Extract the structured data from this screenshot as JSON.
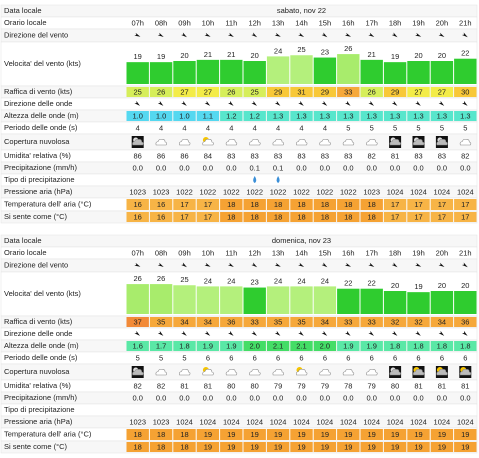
{
  "days": [
    {
      "rows": [
        {
          "label": "Data locale",
          "value": "sabato, nov 22"
        },
        {
          "label": "Orario locale",
          "values": [
            "07h",
            "08h",
            "09h",
            "10h",
            "11h",
            "12h",
            "13h",
            "14h",
            "15h",
            "16h",
            "17h",
            "18h",
            "19h",
            "20h",
            "21h"
          ]
        },
        {
          "label": "Direzione del vento"
        },
        {
          "label": "Velocita' del vento (kts)",
          "values": [
            19,
            19,
            20,
            21,
            21,
            20,
            24,
            25,
            23,
            26,
            21,
            19,
            20,
            20,
            22
          ]
        },
        {
          "label": "Raffica di vento (kts)",
          "values": [
            "25",
            "26",
            "27",
            "27",
            "26",
            "25",
            "29",
            "31",
            "29",
            "33",
            "26",
            "29",
            "27",
            "27",
            "30"
          ]
        },
        {
          "label": "Direzione delle onde"
        },
        {
          "label": "Altezza delle onde (m)",
          "values": [
            "1.0",
            "1.0",
            "1.0",
            "1.1",
            "1.2",
            "1.2",
            "1.3",
            "1.3",
            "1.3",
            "1.3",
            "1.3",
            "1.3",
            "1.3",
            "1.3",
            "1.3"
          ]
        },
        {
          "label": "Periodo delle onde (s)",
          "values": [
            "4",
            "4",
            "4",
            "4",
            "4",
            "4",
            "4",
            "4",
            "4",
            "5",
            "5",
            "5",
            "5",
            "5",
            "5"
          ]
        },
        {
          "label": "Copertura nuvolosa"
        },
        {
          "label": "Umidita' relativa (%)",
          "values": [
            "86",
            "86",
            "86",
            "84",
            "83",
            "83",
            "83",
            "83",
            "83",
            "83",
            "82",
            "81",
            "83",
            "83",
            "82"
          ]
        },
        {
          "label": "Precipitazione (mm/h)",
          "values": [
            "0.0",
            "0.0",
            "0.0",
            "0.0",
            "0.0",
            "0.1",
            "0.1",
            "0.0",
            "0.0",
            "0.0",
            "0.0",
            "0.0",
            "0.0",
            "0.0",
            "0.0"
          ]
        },
        {
          "label": "Tipo di precipitazione"
        },
        {
          "label": "Pressione aria (hPa)",
          "values": [
            "1023",
            "1023",
            "1022",
            "1022",
            "1022",
            "1022",
            "1022",
            "1022",
            "1022",
            "1022",
            "1023",
            "1024",
            "1024",
            "1024",
            "1024"
          ]
        },
        {
          "label": "Temperatura dell' aria (°C)",
          "values": [
            "16",
            "16",
            "17",
            "17",
            "18",
            "18",
            "18",
            "18",
            "18",
            "18",
            "18",
            "17",
            "17",
            "17",
            "17"
          ]
        },
        {
          "label": "Si sente come (°C)",
          "values": [
            "16",
            "16",
            "17",
            "17",
            "18",
            "18",
            "18",
            "18",
            "18",
            "18",
            "18",
            "17",
            "17",
            "17",
            "17"
          ]
        }
      ]
    },
    {
      "rows": [
        {
          "label": "Data locale",
          "value": "domenica, nov 23"
        },
        {
          "label": "Orario locale",
          "values": [
            "07h",
            "08h",
            "09h",
            "10h",
            "11h",
            "12h",
            "13h",
            "14h",
            "15h",
            "16h",
            "17h",
            "18h",
            "19h",
            "20h",
            "21h"
          ]
        },
        {
          "label": "Direzione del vento"
        },
        {
          "label": "Velocita' del vento (kts)",
          "values": [
            26,
            26,
            25,
            24,
            24,
            23,
            24,
            24,
            24,
            22,
            22,
            20,
            19,
            20,
            20
          ]
        },
        {
          "label": "Raffica di vento (kts)",
          "values": [
            "37",
            "35",
            "34",
            "34",
            "36",
            "33",
            "35",
            "35",
            "34",
            "33",
            "33",
            "32",
            "32",
            "34",
            "36"
          ]
        },
        {
          "label": "Direzione delle onde"
        },
        {
          "label": "Altezza delle onde (m)",
          "values": [
            "1.6",
            "1.7",
            "1.8",
            "1.9",
            "1.9",
            "2.0",
            "2.1",
            "2.1",
            "2.0",
            "1.9",
            "1.9",
            "1.8",
            "1.8",
            "1.8",
            "1.8"
          ]
        },
        {
          "label": "Periodo delle onde (s)",
          "values": [
            "5",
            "5",
            "5",
            "6",
            "6",
            "6",
            "6",
            "6",
            "6",
            "6",
            "6",
            "6",
            "6",
            "6",
            "6"
          ]
        },
        {
          "label": "Copertura nuvolosa"
        },
        {
          "label": "Umidita' relativa (%)",
          "values": [
            "82",
            "82",
            "81",
            "81",
            "80",
            "80",
            "79",
            "79",
            "79",
            "78",
            "79",
            "80",
            "81",
            "81",
            "81"
          ]
        },
        {
          "label": "Precipitazione (mm/h)",
          "values": [
            "0.0",
            "0.0",
            "0.0",
            "0.0",
            "0.0",
            "0.0",
            "0.0",
            "0.0",
            "0.0",
            "0.0",
            "0.0",
            "0.0",
            "0.0",
            "0.0",
            "0.0"
          ]
        },
        {
          "label": "Tipo di precipitazione"
        },
        {
          "label": "Pressione aria (hPa)",
          "values": [
            "1023",
            "1023",
            "1024",
            "1024",
            "1024",
            "1024",
            "1024",
            "1024",
            "1024",
            "1024",
            "1024",
            "1024",
            "1024",
            "1024",
            "1024"
          ]
        },
        {
          "label": "Temperatura dell' aria (°C)",
          "values": [
            "18",
            "18",
            "18",
            "19",
            "19",
            "19",
            "19",
            "19",
            "19",
            "19",
            "19",
            "19",
            "19",
            "19",
            "19"
          ]
        },
        {
          "label": "Si sente come (°C)",
          "values": [
            "18",
            "18",
            "18",
            "19",
            "19",
            "19",
            "19",
            "19",
            "19",
            "19",
            "19",
            "19",
            "19",
            "19",
            "19"
          ]
        }
      ]
    }
  ]
}
